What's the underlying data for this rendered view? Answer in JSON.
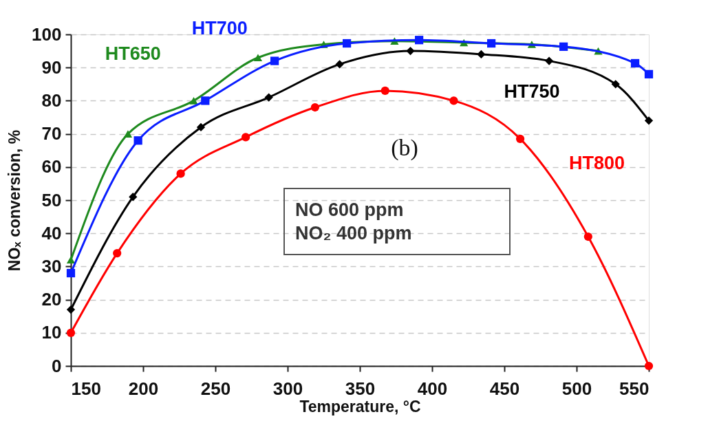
{
  "chart_data": {
    "type": "line",
    "xlabel": "Temperature, °C",
    "ylabel": "NOₓ conversion, %",
    "xlim": [
      150,
      550
    ],
    "xticks": [
      150,
      200,
      250,
      300,
      350,
      400,
      450,
      500,
      550
    ],
    "ylim": [
      0,
      100
    ],
    "yticks": [
      0,
      10,
      20,
      30,
      40,
      50,
      60,
      70,
      80,
      90,
      100
    ],
    "grid": "y",
    "legend": false,
    "line_style": "solid",
    "series": [
      {
        "name": "HT650",
        "color": "#1e8a1e",
        "marker": "triangle",
        "x": [
          150,
          189.5,
          235,
          279.5,
          325,
          374,
          422,
          469,
          515
        ],
        "values": [
          32,
          70,
          80,
          93,
          97,
          98,
          97.5,
          97,
          95
        ]
      },
      {
        "name": "HT700",
        "color": "#0a1eff",
        "marker": "square",
        "x": [
          150,
          196.5,
          243,
          291,
          341,
          391,
          441,
          491,
          540.5,
          550
        ],
        "values": [
          28,
          68,
          80,
          92,
          97.3,
          98.3,
          97.3,
          96.3,
          91.3,
          88
        ]
      },
      {
        "name": "HT750",
        "color": "#000000",
        "marker": "diamond",
        "x": [
          150,
          193,
          240,
          287,
          336,
          385,
          434,
          481,
          527,
          550
        ],
        "values": [
          17,
          51,
          72,
          81,
          91,
          95,
          94,
          92,
          85,
          74
        ]
      },
      {
        "name": "HT800",
        "color": "#ff0000",
        "marker": "circle",
        "x": [
          150,
          182,
          226,
          271,
          319,
          367.5,
          415,
          461,
          508,
          550
        ],
        "values": [
          10,
          34,
          58,
          69,
          78,
          83,
          80,
          68.5,
          39,
          0
        ]
      }
    ],
    "annotations": [
      "(b)",
      "NO 600 ppm\nNO₂ 400 ppm"
    ]
  }
}
